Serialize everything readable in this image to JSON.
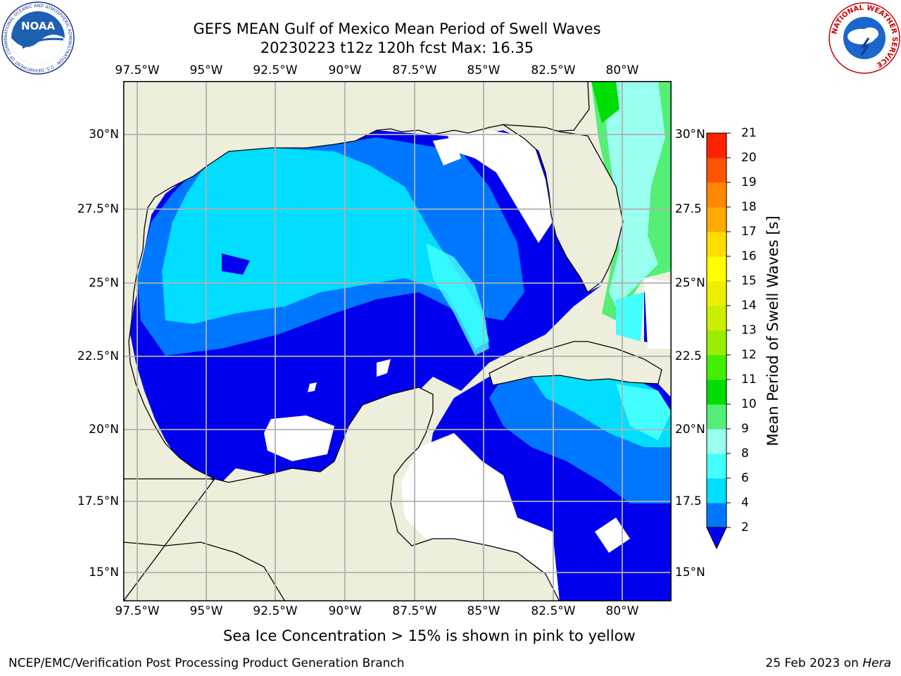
{
  "header": {
    "title_line1": "GEFS MEAN Gulf of Mexico Mean Period of Swell Waves",
    "title_line2": "20230223 t12z 120h fcst   Max: 16.35"
  },
  "logos": {
    "left": {
      "text": "NOAA",
      "ring_text": "NATIONAL OCEANIC AND ATMOSPHERIC ADMINISTRATION · U.S. DEPARTMENT OF COMMERCE"
    },
    "right": {
      "ring_text": "NATIONAL WEATHER SERVICE"
    }
  },
  "map": {
    "lon_ticks": [
      "97.5°W",
      "95°W",
      "92.5°W",
      "90°W",
      "87.5°W",
      "85°W",
      "82.5°W",
      "80°W"
    ],
    "lat_ticks_left": [
      "30°N",
      "27.5°N",
      "25°N",
      "22.5°N",
      "20°N",
      "17.5°N",
      "15°N"
    ],
    "lat_ticks_right": [
      "30°N",
      "27.5",
      "25°N",
      "22.5",
      "20°N",
      "17.5",
      "15°N"
    ],
    "land_color": "#eeeedd",
    "no_data_color": "#ffffff",
    "grid_color": "#b0b0b0"
  },
  "colorbar": {
    "label": "Mean Period of Swell Waves [s]",
    "ticks": [
      "2",
      "4",
      "6",
      "8",
      "9",
      "10",
      "11",
      "12",
      "13",
      "14",
      "15",
      "16",
      "17",
      "18",
      "19",
      "20",
      "21"
    ],
    "levels": [
      {
        "lo": 2,
        "hi": 4,
        "color": "#0077ff"
      },
      {
        "lo": 4,
        "hi": 6,
        "color": "#00ddff"
      },
      {
        "lo": 6,
        "hi": 8,
        "color": "#44ffff"
      },
      {
        "lo": 8,
        "hi": 9,
        "color": "#99ffee"
      },
      {
        "lo": 9,
        "hi": 10,
        "color": "#55ee77"
      },
      {
        "lo": 10,
        "hi": 11,
        "color": "#00dd00"
      },
      {
        "lo": 11,
        "hi": 12,
        "color": "#44ee00"
      },
      {
        "lo": 12,
        "hi": 13,
        "color": "#99ee00"
      },
      {
        "lo": 13,
        "hi": 14,
        "color": "#ccee00"
      },
      {
        "lo": 14,
        "hi": 15,
        "color": "#eeee00"
      },
      {
        "lo": 15,
        "hi": 16,
        "color": "#ffff00"
      },
      {
        "lo": 16,
        "hi": 17,
        "color": "#ffdd00"
      },
      {
        "lo": 17,
        "hi": 18,
        "color": "#ffaa00"
      },
      {
        "lo": 18,
        "hi": 19,
        "color": "#ff8800"
      },
      {
        "lo": 19,
        "hi": 20,
        "color": "#ff5500"
      },
      {
        "lo": 20,
        "hi": 21,
        "color": "#ff2200"
      }
    ],
    "under_color": "#0000ee"
  },
  "note": "Sea Ice Concentration > 15% is shown in pink to yellow",
  "footer": {
    "left": "NCEP/EMC/Verification Post Processing Product Generation Branch",
    "right_prefix": "25 Feb 2023 on ",
    "right_host": "Hera"
  }
}
